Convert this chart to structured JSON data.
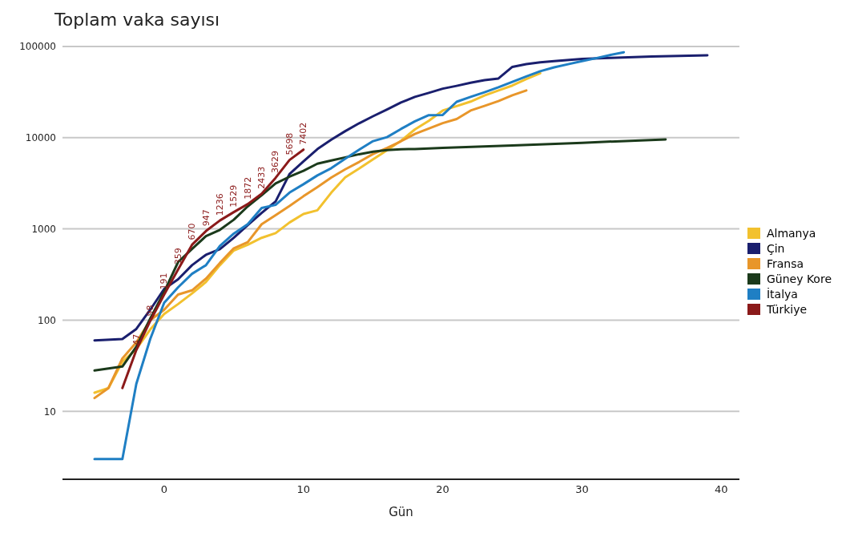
{
  "chart_data": {
    "type": "line",
    "title": "Toplam vaka sayısı",
    "xlabel": "Gün",
    "log": "y",
    "grid": "y",
    "legend": "right",
    "marker": "none",
    "line_style": "solid",
    "xlim": [
      -7.3,
      41.3
    ],
    "xticks": [
      0,
      10,
      20,
      30,
      40
    ],
    "ylim": [
      1.8,
      100000
    ],
    "yticks": [
      10,
      100,
      1000,
      10000,
      100000
    ],
    "series": [
      {
        "name": "Almanya",
        "color": "#f2c12e",
        "x": [
          -5,
          -4,
          -3,
          -2,
          -1,
          0,
          1,
          2,
          3,
          4,
          5,
          6,
          7,
          8,
          9,
          10,
          11,
          12,
          13,
          14,
          15,
          16,
          17,
          18,
          19,
          20,
          21,
          22,
          23,
          24,
          25,
          26,
          27
        ],
        "values": [
          16,
          18,
          35,
          48,
          79,
          117,
          150,
          196,
          262,
          400,
          580,
          670,
          799,
          900,
          1176,
          1457,
          1600,
          2500,
          3675,
          4585,
          5795,
          7272,
          9257,
          12327,
          15320,
          19848,
          22213,
          24873,
          29056,
          32986,
          37323,
          43938,
          50871
        ]
      },
      {
        "name": "Çin",
        "color": "#1a1f6e",
        "x": [
          -5,
          -3,
          -2,
          -1,
          0,
          1,
          2,
          3,
          4,
          5,
          6,
          7,
          8,
          9,
          10,
          11,
          12,
          13,
          14,
          15,
          16,
          17,
          18,
          19,
          20,
          21,
          22,
          23,
          24,
          25,
          26,
          27,
          28,
          30,
          32,
          35,
          39
        ],
        "values": [
          60,
          62,
          80,
          130,
          220,
          280,
          400,
          520,
          600,
          800,
          1100,
          1500,
          2000,
          4000,
          5500,
          7500,
          9500,
          11800,
          14400,
          17200,
          20400,
          24300,
          28000,
          31000,
          34500,
          37000,
          40000,
          42700,
          44600,
          59800,
          64000,
          67100,
          69000,
          73000,
          75000,
          77500,
          80000
        ]
      },
      {
        "name": "Fransa",
        "color": "#e8962a",
        "x": [
          -5,
          -4,
          -3,
          -2,
          -1,
          0,
          1,
          2,
          3,
          4,
          5,
          6,
          7,
          8,
          9,
          10,
          11,
          12,
          13,
          14,
          15,
          16,
          17,
          18,
          19,
          20,
          21,
          22,
          23,
          24,
          25,
          26
        ],
        "values": [
          14,
          18,
          38,
          57,
          100,
          130,
          191,
          212,
          285,
          423,
          613,
          716,
          1126,
          1412,
          1784,
          2281,
          2876,
          3661,
          4499,
          5423,
          6633,
          7730,
          9134,
          10995,
          12612,
          14459,
          16018,
          19856,
          22304,
          25233,
          29155,
          32964
        ]
      },
      {
        "name": "Güney Kore",
        "color": "#1b3a1b",
        "x": [
          -5,
          -3,
          -2,
          -1,
          0,
          1,
          2,
          3,
          4,
          5,
          6,
          7,
          8,
          9,
          10,
          11,
          12,
          13,
          14,
          15,
          16,
          17,
          18,
          20,
          25,
          30,
          36
        ],
        "values": [
          28,
          31,
          51,
          104,
          204,
          433,
          602,
          833,
          977,
          1261,
          1766,
          2337,
          3150,
          3736,
          4335,
          5186,
          5621,
          6088,
          6593,
          7041,
          7313,
          7478,
          7513,
          7755,
          8236,
          8799,
          9583
        ]
      },
      {
        "name": "İtalya",
        "color": "#1f7fc4",
        "x": [
          -5,
          -3,
          -2,
          -1,
          0,
          1,
          2,
          3,
          4,
          5,
          6,
          7,
          8,
          9,
          10,
          11,
          12,
          13,
          14,
          15,
          16,
          17,
          18,
          19,
          20,
          21,
          22,
          23,
          24,
          25,
          26,
          27,
          28,
          29,
          30,
          31,
          32,
          33
        ],
        "values": [
          3,
          3,
          20,
          62,
          155,
          229,
          322,
          400,
          650,
          888,
          1128,
          1694,
          1835,
          2502,
          3089,
          3858,
          4636,
          5883,
          7375,
          9172,
          10149,
          12462,
          15113,
          17660,
          17750,
          24747,
          27980,
          31506,
          35713,
          41035,
          47021,
          53578,
          59138,
          63927,
          69176,
          74386,
          80589,
          86498
        ]
      },
      {
        "name": "Türkiye",
        "color": "#8b1a1a",
        "x": [
          -3,
          -2,
          -1,
          0,
          1,
          2,
          3,
          4,
          5,
          6,
          7,
          8,
          9,
          10
        ],
        "values": [
          18,
          47,
          98,
          191,
          359,
          670,
          947,
          1236,
          1529,
          1872,
          2433,
          3629,
          5698,
          7402
        ],
        "value_labels": [
          null,
          "47",
          "98",
          "191",
          "359",
          "670",
          "947",
          "1236",
          "1529",
          "1872",
          "2433",
          "3629",
          "5698",
          "7402"
        ]
      }
    ]
  }
}
